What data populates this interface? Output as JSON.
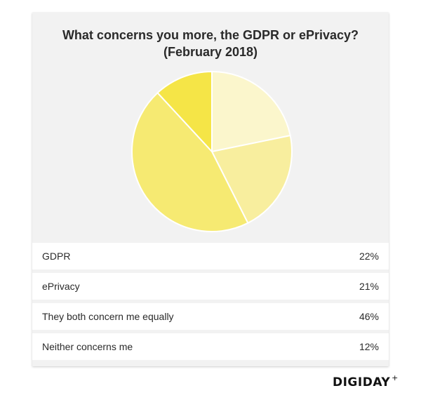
{
  "chart_data": {
    "type": "pie",
    "title": "What concerns you more, the GDPR or ePrivacy?",
    "subtitle": "(February 2018)",
    "slices": [
      {
        "label": "GDPR",
        "value": 22,
        "display": "22%",
        "color": "#fbf6cc"
      },
      {
        "label": "ePrivacy",
        "value": 21,
        "display": "21%",
        "color": "#f8ee9e"
      },
      {
        "label": "They both concern me equally",
        "value": 46,
        "display": "46%",
        "color": "#f6ea72"
      },
      {
        "label": "Neither concerns me",
        "value": 12,
        "display": "12%",
        "color": "#f5e547"
      }
    ],
    "legend_position": "below"
  },
  "brand": {
    "logo_text": "DIGIDAY",
    "logo_mark": "+"
  }
}
